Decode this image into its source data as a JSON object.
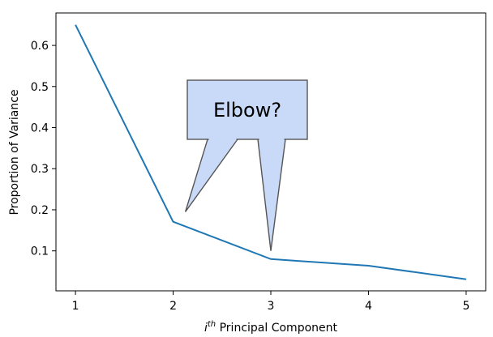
{
  "chart_data": {
    "type": "line",
    "x": [
      1,
      2,
      3,
      4,
      5
    ],
    "series": [
      {
        "values": [
          0.65,
          0.171,
          0.08,
          0.064,
          0.031
        ]
      }
    ],
    "line_color": "#1f77b4",
    "xlim": [
      0.8,
      5.2
    ],
    "ylim": [
      0.0028,
      0.679
    ],
    "xticks": [
      "1",
      "2",
      "3",
      "4",
      "5"
    ],
    "yticks": [
      "0.1",
      "0.2",
      "0.3",
      "0.4",
      "0.5",
      "0.6"
    ],
    "ylabel": "Proportion of Variance",
    "xlabel_base": "i",
    "xlabel_sup": "th",
    "xlabel_rest": " Principal Component",
    "grid": false,
    "annotation": {
      "text": "Elbow?",
      "fill_color": "#c9d9f8",
      "pointer_targets": [
        [
          2.125,
          0.195
        ],
        [
          3.0,
          0.1
        ]
      ]
    }
  }
}
